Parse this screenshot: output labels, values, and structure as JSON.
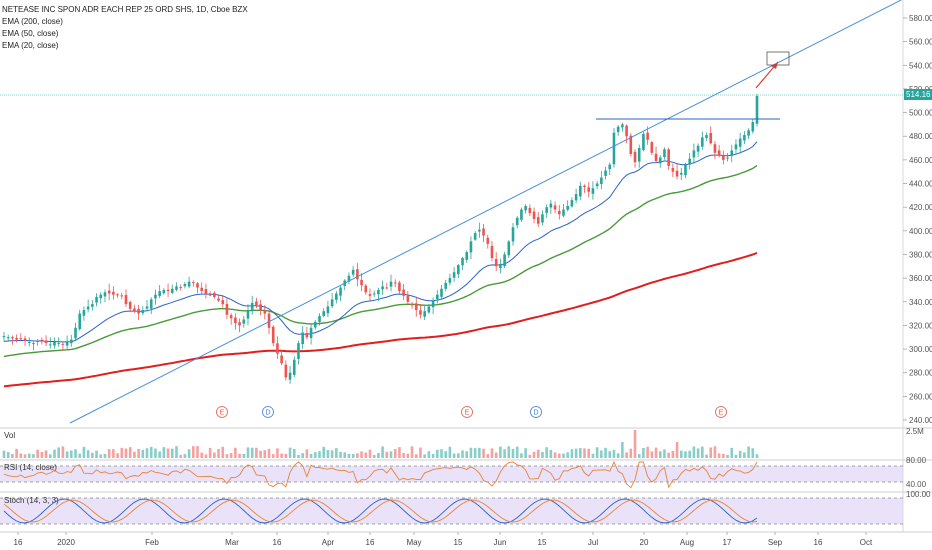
{
  "header": {
    "symbol_line": "NETEASE INC SPON ADR EACH REP 25 ORD SHS, 1D, Cboe BZX",
    "studies": [
      "EMA (200, close)",
      "EMA (50, close)",
      "EMA (20, close)"
    ]
  },
  "panels": {
    "vol_label": "Vol",
    "rsi_label": "RSI (14, close)",
    "stoch_label": "Stoch (14, 3, 3)"
  },
  "price_axis": {
    "ticks": [
      "580.00",
      "560.00",
      "540.00",
      "520.00",
      "500.00",
      "480.00",
      "460.00",
      "440.00",
      "420.00",
      "400.00",
      "380.00",
      "360.00",
      "340.00",
      "320.00",
      "300.00",
      "280.00",
      "260.00",
      "240.00"
    ],
    "last_price": "514.16"
  },
  "vol_axis": {
    "ticks": [
      "2.5M"
    ]
  },
  "rsi_axis": {
    "ticks": [
      "80.00",
      "40.00"
    ]
  },
  "stoch_axis": {
    "ticks": [
      "100.00"
    ]
  },
  "date_axis": {
    "labels": [
      "16",
      "2020",
      "Feb",
      "Mar",
      "16",
      "Apr",
      "16",
      "May",
      "15",
      "Jun",
      "15",
      "Jul",
      "20",
      "Aug",
      "17",
      "Sep",
      "16",
      "Oct"
    ]
  },
  "events": [
    {
      "label": "E",
      "color": "#e25c4b"
    },
    {
      "label": "D",
      "color": "#3d7bd9"
    },
    {
      "label": "E",
      "color": "#e25c4b"
    },
    {
      "label": "D",
      "color": "#3d7bd9"
    },
    {
      "label": "E",
      "color": "#e25c4b"
    }
  ],
  "colors": {
    "up": "#26a69a",
    "down": "#ef5350",
    "ema200": "#e31c1c",
    "ema50": "#4a9a3a",
    "ema20": "#2962c9",
    "trendline": "#4a90d9",
    "rsi_band": "#e1d6f5",
    "rsi_line": "#e8833a",
    "stoch_k": "#2962c9",
    "stoch_d": "#e8833a",
    "arrow": "#e33b3b"
  },
  "chart_data": {
    "type": "candlestick",
    "title": "NETEASE INC SPON ADR EACH REP 25 ORD SHS, 1D, Cboe BZX",
    "ylim": [
      230,
      590
    ],
    "last_price": 514.16,
    "resistance_level": 493,
    "projected_target_box": [
      540,
      550
    ],
    "closes": [
      311,
      310,
      309,
      308,
      309,
      307,
      306,
      305,
      306,
      307,
      305,
      304,
      306,
      305,
      304,
      306,
      308,
      318,
      330,
      333,
      336,
      338,
      344,
      346,
      348,
      347,
      346,
      346,
      345,
      338,
      334,
      332,
      330,
      333,
      336,
      342,
      346,
      349,
      350,
      349,
      351,
      353,
      352,
      355,
      357,
      356,
      352,
      349,
      347,
      346,
      344,
      341,
      338,
      329,
      326,
      322,
      320,
      325,
      333,
      339,
      336,
      333,
      330,
      318,
      305,
      296,
      288,
      276,
      280,
      291,
      305,
      314,
      310,
      318,
      323,
      328,
      332,
      336,
      342,
      347,
      352,
      358,
      362,
      367,
      359,
      354,
      348,
      345,
      347,
      350,
      353,
      352,
      357,
      356,
      349,
      345,
      340,
      337,
      333,
      329,
      332,
      336,
      341,
      346,
      351,
      356,
      360,
      365,
      371,
      377,
      382,
      391,
      398,
      401,
      396,
      389,
      377,
      370,
      372,
      380,
      391,
      403,
      411,
      418,
      421,
      415,
      410,
      406,
      414,
      420,
      423,
      418,
      414,
      418,
      421,
      426,
      431,
      438,
      437,
      433,
      436,
      440,
      445,
      451,
      456,
      483,
      488,
      490,
      480,
      465,
      458,
      470,
      482,
      477,
      466,
      459,
      462,
      469,
      455,
      450,
      446,
      449,
      456,
      461,
      468,
      472,
      479,
      481,
      474,
      466,
      464,
      460,
      462,
      468,
      473,
      478,
      481,
      485,
      492,
      514
    ]
  }
}
